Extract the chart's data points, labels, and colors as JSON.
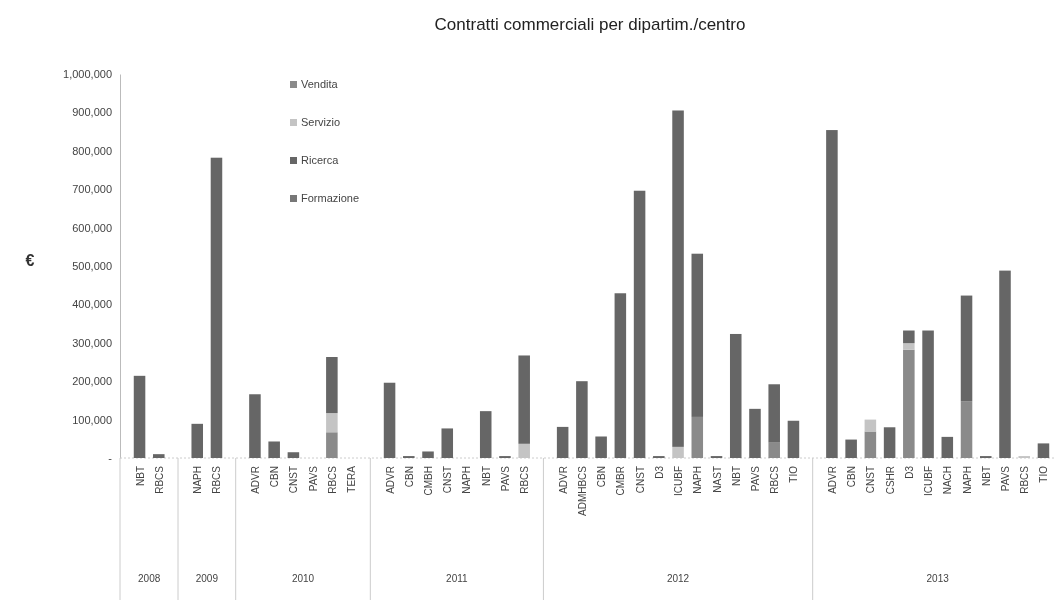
{
  "chart_data": {
    "type": "bar",
    "stacked": true,
    "title": "Contratti commerciali per dipartim./centro",
    "ylabel": "€",
    "categories": [
      "NBT",
      "RBCS",
      null,
      "NAPH",
      "RBCS",
      null,
      "ADVR",
      "CBN",
      "CNST",
      "PAVS",
      "RBCS",
      "TERA",
      null,
      "ADVR",
      "CBN",
      "CMBH",
      "CNST",
      "NAPH",
      "NBT",
      "PAVS",
      "RBCS",
      null,
      "ADVR",
      "ADMHBCS",
      "CBN",
      "CMBR",
      "CNST",
      "D3",
      "ICUBF",
      "NAPH",
      "NAST",
      "NBT",
      "PAVS",
      "RBCS",
      "TIO",
      null,
      "ADVR",
      "CBN",
      "CNST",
      "CSHR",
      "D3",
      "ICUBF",
      "NACH",
      "NAPH",
      "NBT",
      "PAVS",
      "RBCS",
      "TIO"
    ],
    "series": [
      {
        "name": "Vendita",
        "color": "#8a8a8a",
        "values": [
          null,
          null,
          null,
          null,
          null,
          null,
          null,
          null,
          null,
          null,
          67000,
          null,
          null,
          null,
          null,
          null,
          null,
          null,
          null,
          null,
          null,
          null,
          null,
          null,
          null,
          null,
          null,
          null,
          null,
          107000,
          null,
          null,
          null,
          40000,
          null,
          null,
          null,
          null,
          69000,
          null,
          282000,
          null,
          null,
          148000,
          null,
          null,
          null,
          null
        ]
      },
      {
        "name": "Servizio",
        "color": "#c4c4c4",
        "values": [
          null,
          null,
          null,
          null,
          null,
          null,
          null,
          null,
          null,
          null,
          50000,
          null,
          null,
          null,
          null,
          null,
          null,
          null,
          null,
          null,
          37000,
          null,
          null,
          null,
          null,
          null,
          null,
          null,
          29000,
          null,
          null,
          null,
          null,
          null,
          null,
          null,
          null,
          null,
          31000,
          null,
          17000,
          null,
          null,
          null,
          null,
          null,
          5000,
          null
        ]
      },
      {
        "name": "Ricerca",
        "color": "#666666",
        "values": [
          214000,
          10000,
          null,
          89000,
          782000,
          null,
          166000,
          43000,
          15000,
          null,
          146000,
          null,
          null,
          196000,
          5000,
          17000,
          77000,
          null,
          122000,
          5000,
          230000,
          null,
          81000,
          200000,
          56000,
          429000,
          696000,
          5000,
          876000,
          425000,
          5000,
          323000,
          128000,
          152000,
          97000,
          null,
          854000,
          48000,
          null,
          80000,
          33000,
          332000,
          55000,
          275000,
          5000,
          488000,
          null,
          38000
        ]
      },
      {
        "name": "Formazione",
        "color": "#777777",
        "values": [
          null,
          null,
          null,
          null,
          null,
          null,
          null,
          null,
          null,
          null,
          null,
          null,
          null,
          null,
          null,
          null,
          null,
          null,
          null,
          null,
          null,
          null,
          null,
          null,
          null,
          null,
          null,
          null,
          null,
          null,
          null,
          null,
          null,
          null,
          null,
          null,
          null,
          null,
          null,
          null,
          null,
          null,
          null,
          null,
          null,
          null,
          null,
          null
        ]
      }
    ],
    "ylim": [
      0,
      1000000
    ],
    "yticks": [
      {
        "value": 0,
        "label": "-"
      },
      {
        "value": 100000,
        "label": "100,000"
      },
      {
        "value": 200000,
        "label": "200,000"
      },
      {
        "value": 300000,
        "label": "300,000"
      },
      {
        "value": 400000,
        "label": "400,000"
      },
      {
        "value": 500000,
        "label": "500,000"
      },
      {
        "value": 600000,
        "label": "600,000"
      },
      {
        "value": 700000,
        "label": "700,000"
      },
      {
        "value": 800000,
        "label": "800,000"
      },
      {
        "value": 900000,
        "label": "900,000"
      },
      {
        "value": 1000000,
        "label": "1,000,000"
      }
    ],
    "annotations": [
      "2008",
      "2009",
      "2010",
      "2011",
      "2012",
      "2013"
    ],
    "legend": "top left",
    "grid": false
  }
}
